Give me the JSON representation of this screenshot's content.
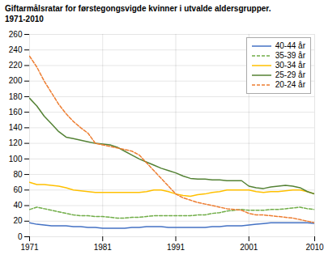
{
  "chart_data": {
    "type": "line",
    "title": "Giftarmålsratar for førstegongsvigde kvinner i utvalde aldersgrupper.\n1971-2010",
    "x": [
      1971,
      1972,
      1973,
      1974,
      1975,
      1976,
      1977,
      1978,
      1979,
      1980,
      1981,
      1982,
      1983,
      1984,
      1985,
      1986,
      1987,
      1988,
      1989,
      1990,
      1991,
      1992,
      1993,
      1994,
      1995,
      1996,
      1997,
      1998,
      1999,
      2000,
      2001,
      2002,
      2003,
      2004,
      2005,
      2006,
      2007,
      2008,
      2009,
      2010
    ],
    "series": [
      {
        "name": "40-44 år",
        "color": "#4472C4",
        "line_style": "solid",
        "values": [
          18,
          16,
          15,
          14,
          14,
          14,
          13,
          13,
          12,
          12,
          11,
          11,
          11,
          11,
          12,
          12,
          13,
          13,
          13,
          12,
          12,
          12,
          12,
          12,
          12,
          13,
          13,
          14,
          14,
          14,
          15,
          16,
          17,
          18,
          18,
          18,
          18,
          18,
          18,
          17
        ]
      },
      {
        "name": "35-39 år",
        "color": "#70AD47",
        "line_style": "dashed",
        "values": [
          35,
          38,
          36,
          34,
          32,
          30,
          28,
          27,
          27,
          26,
          26,
          25,
          24,
          24,
          25,
          25,
          26,
          27,
          27,
          27,
          27,
          27,
          27,
          28,
          28,
          30,
          31,
          33,
          34,
          35,
          34,
          34,
          34,
          35,
          35,
          36,
          37,
          38,
          36,
          35
        ]
      },
      {
        "name": "30-34 år",
        "color": "#FFC000",
        "line_style": "solid",
        "values": [
          70,
          67,
          67,
          66,
          65,
          63,
          60,
          59,
          58,
          57,
          57,
          57,
          57,
          57,
          57,
          57,
          58,
          60,
          60,
          58,
          55,
          53,
          52,
          54,
          55,
          57,
          58,
          60,
          60,
          60,
          60,
          58,
          57,
          58,
          58,
          59,
          60,
          60,
          58,
          55
        ]
      },
      {
        "name": "25-29 år",
        "color": "#548235",
        "line_style": "solid",
        "values": [
          178,
          168,
          155,
          145,
          135,
          128,
          126,
          124,
          122,
          120,
          119,
          118,
          115,
          110,
          105,
          100,
          96,
          92,
          88,
          85,
          82,
          78,
          75,
          74,
          74,
          73,
          73,
          72,
          72,
          72,
          65,
          63,
          62,
          64,
          65,
          66,
          65,
          63,
          58,
          55
        ]
      },
      {
        "name": "20-24 år",
        "color": "#ED7D31",
        "line_style": "dashed",
        "values": [
          232,
          218,
          200,
          185,
          170,
          158,
          148,
          140,
          133,
          120,
          118,
          116,
          114,
          112,
          110,
          105,
          95,
          85,
          75,
          65,
          55,
          50,
          47,
          44,
          42,
          40,
          38,
          36,
          35,
          34,
          30,
          28,
          28,
          27,
          26,
          25,
          24,
          22,
          20,
          18
        ]
      }
    ],
    "xlim": [
      1971,
      2010
    ],
    "xticks": [
      1971,
      1981,
      1991,
      2001,
      2010
    ],
    "ylim": [
      0,
      260
    ],
    "yticks": [
      0,
      20,
      40,
      60,
      80,
      100,
      120,
      140,
      160,
      180,
      200,
      220,
      240,
      260
    ],
    "grid": true,
    "legend": "upper right"
  }
}
